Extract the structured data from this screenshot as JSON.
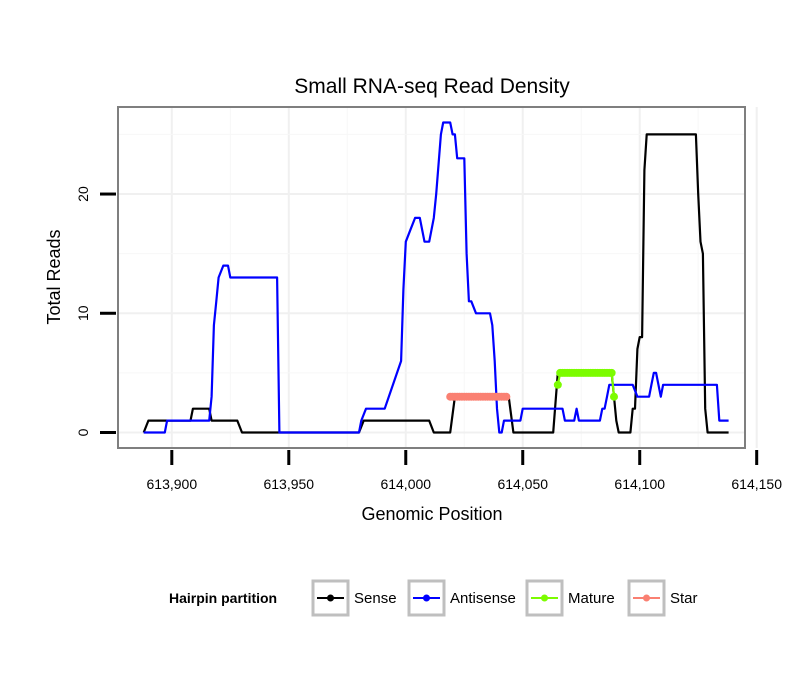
{
  "chart_data": {
    "type": "line",
    "title": "Small RNA-seq Read Density",
    "xlabel": "Genomic Position",
    "ylabel": "Total Reads",
    "xlim": [
      613877,
      614145
    ],
    "ylim": [
      -1.3,
      27.3
    ],
    "x_ticks": [
      613900,
      613950,
      614000,
      614050,
      614100,
      614150
    ],
    "x_tick_labels": [
      "613,900",
      "613,950",
      "614,000",
      "614,050",
      "614,100",
      "614,150"
    ],
    "y_ticks": [
      0,
      10,
      20
    ],
    "y_tick_labels": [
      "0",
      "10",
      "20"
    ],
    "grid": true,
    "legend": {
      "title": "Hairpin partition",
      "position": "bottom",
      "entries": [
        "Sense",
        "Antisense",
        "Mature",
        "Star"
      ]
    },
    "series": [
      {
        "name": "Sense",
        "color": "#000000",
        "style": "line",
        "x": [
          613888,
          613890,
          613908,
          613909,
          613916,
          613917,
          613928,
          613930,
          613980,
          613982,
          614010,
          614012,
          614019,
          614021,
          614044,
          614046,
          614063,
          614065,
          614088,
          614089,
          614090,
          614091,
          614092,
          614096,
          614097,
          614098,
          614099,
          614100,
          614101,
          614102,
          614103,
          614104,
          614106,
          614124,
          614125,
          614126,
          614127,
          614128,
          614129,
          614138
        ],
        "y": [
          0,
          1,
          1,
          2,
          2,
          1,
          1,
          0,
          0,
          1,
          1,
          0,
          0,
          3,
          3,
          0,
          0,
          5,
          5,
          3,
          1,
          0,
          0,
          0,
          2,
          2,
          7,
          8,
          8,
          22,
          25,
          25,
          25,
          25,
          20,
          16,
          15,
          2,
          0,
          0
        ]
      },
      {
        "name": "Antisense",
        "color": "#0000ff",
        "style": "line",
        "x": [
          613888,
          613897,
          613898,
          613916,
          613917,
          613918,
          613919,
          613920,
          613922,
          613924,
          613925,
          613945,
          613946,
          613980,
          613981,
          613983,
          613991,
          613998,
          613999,
          614000,
          614002,
          614004,
          614006,
          614008,
          614010,
          614012,
          614013,
          614015,
          614016,
          614017,
          614019,
          614020,
          614021,
          614022,
          614025,
          614026,
          614027,
          614028,
          614030,
          614031,
          614032,
          614036,
          614037,
          614038,
          614039,
          614040,
          614041,
          614042,
          614044,
          614045,
          614049,
          614050,
          614067,
          614068,
          614072,
          614073,
          614074,
          614080,
          614083,
          614084,
          614085,
          614086,
          614087,
          614088,
          614096,
          614097,
          614099,
          614104,
          614105,
          614106,
          614107,
          614109,
          614110,
          614111,
          614112,
          614113,
          614127,
          614130,
          614133,
          614134,
          614136,
          614137,
          614138
        ],
        "y": [
          0,
          0,
          1,
          1,
          3,
          9,
          11,
          13,
          14,
          14,
          13,
          13,
          0,
          0,
          1,
          2,
          2,
          6,
          12,
          16,
          17,
          18,
          18,
          16,
          16,
          18,
          20,
          25,
          26,
          26,
          26,
          25,
          25,
          23,
          23,
          15,
          11,
          11,
          10,
          10,
          10,
          10,
          9,
          6,
          2,
          0,
          0,
          1,
          1,
          1,
          1,
          2,
          2,
          1,
          1,
          2,
          1,
          1,
          1,
          2,
          2,
          3,
          4,
          4,
          4,
          4,
          3,
          3,
          4,
          5,
          5,
          3,
          4,
          4,
          4,
          4,
          4,
          4,
          4,
          1,
          1,
          1,
          1
        ]
      },
      {
        "name": "Mature",
        "color": "#7cfc00",
        "style": "line-points",
        "x": [
          614065,
          614066,
          614067,
          614068,
          614069,
          614070,
          614071,
          614072,
          614073,
          614074,
          614075,
          614076,
          614077,
          614078,
          614079,
          614080,
          614081,
          614082,
          614083,
          614084,
          614085,
          614086,
          614087,
          614088,
          614089
        ],
        "y": [
          4,
          5,
          5,
          5,
          5,
          5,
          5,
          5,
          5,
          5,
          5,
          5,
          5,
          5,
          5,
          5,
          5,
          5,
          5,
          5,
          5,
          5,
          5,
          5,
          3
        ]
      },
      {
        "name": "Star",
        "color": "#fa8072",
        "style": "line-points",
        "x": [
          614019,
          614020,
          614021,
          614022,
          614023,
          614024,
          614025,
          614026,
          614027,
          614028,
          614029,
          614030,
          614031,
          614032,
          614033,
          614034,
          614035,
          614036,
          614037,
          614038,
          614039,
          614040,
          614041,
          614042,
          614043
        ],
        "y": [
          3,
          3,
          3,
          3,
          3,
          3,
          3,
          3,
          3,
          3,
          3,
          3,
          3,
          3,
          3,
          3,
          3,
          3,
          3,
          3,
          3,
          3,
          3,
          3,
          3
        ]
      }
    ]
  }
}
